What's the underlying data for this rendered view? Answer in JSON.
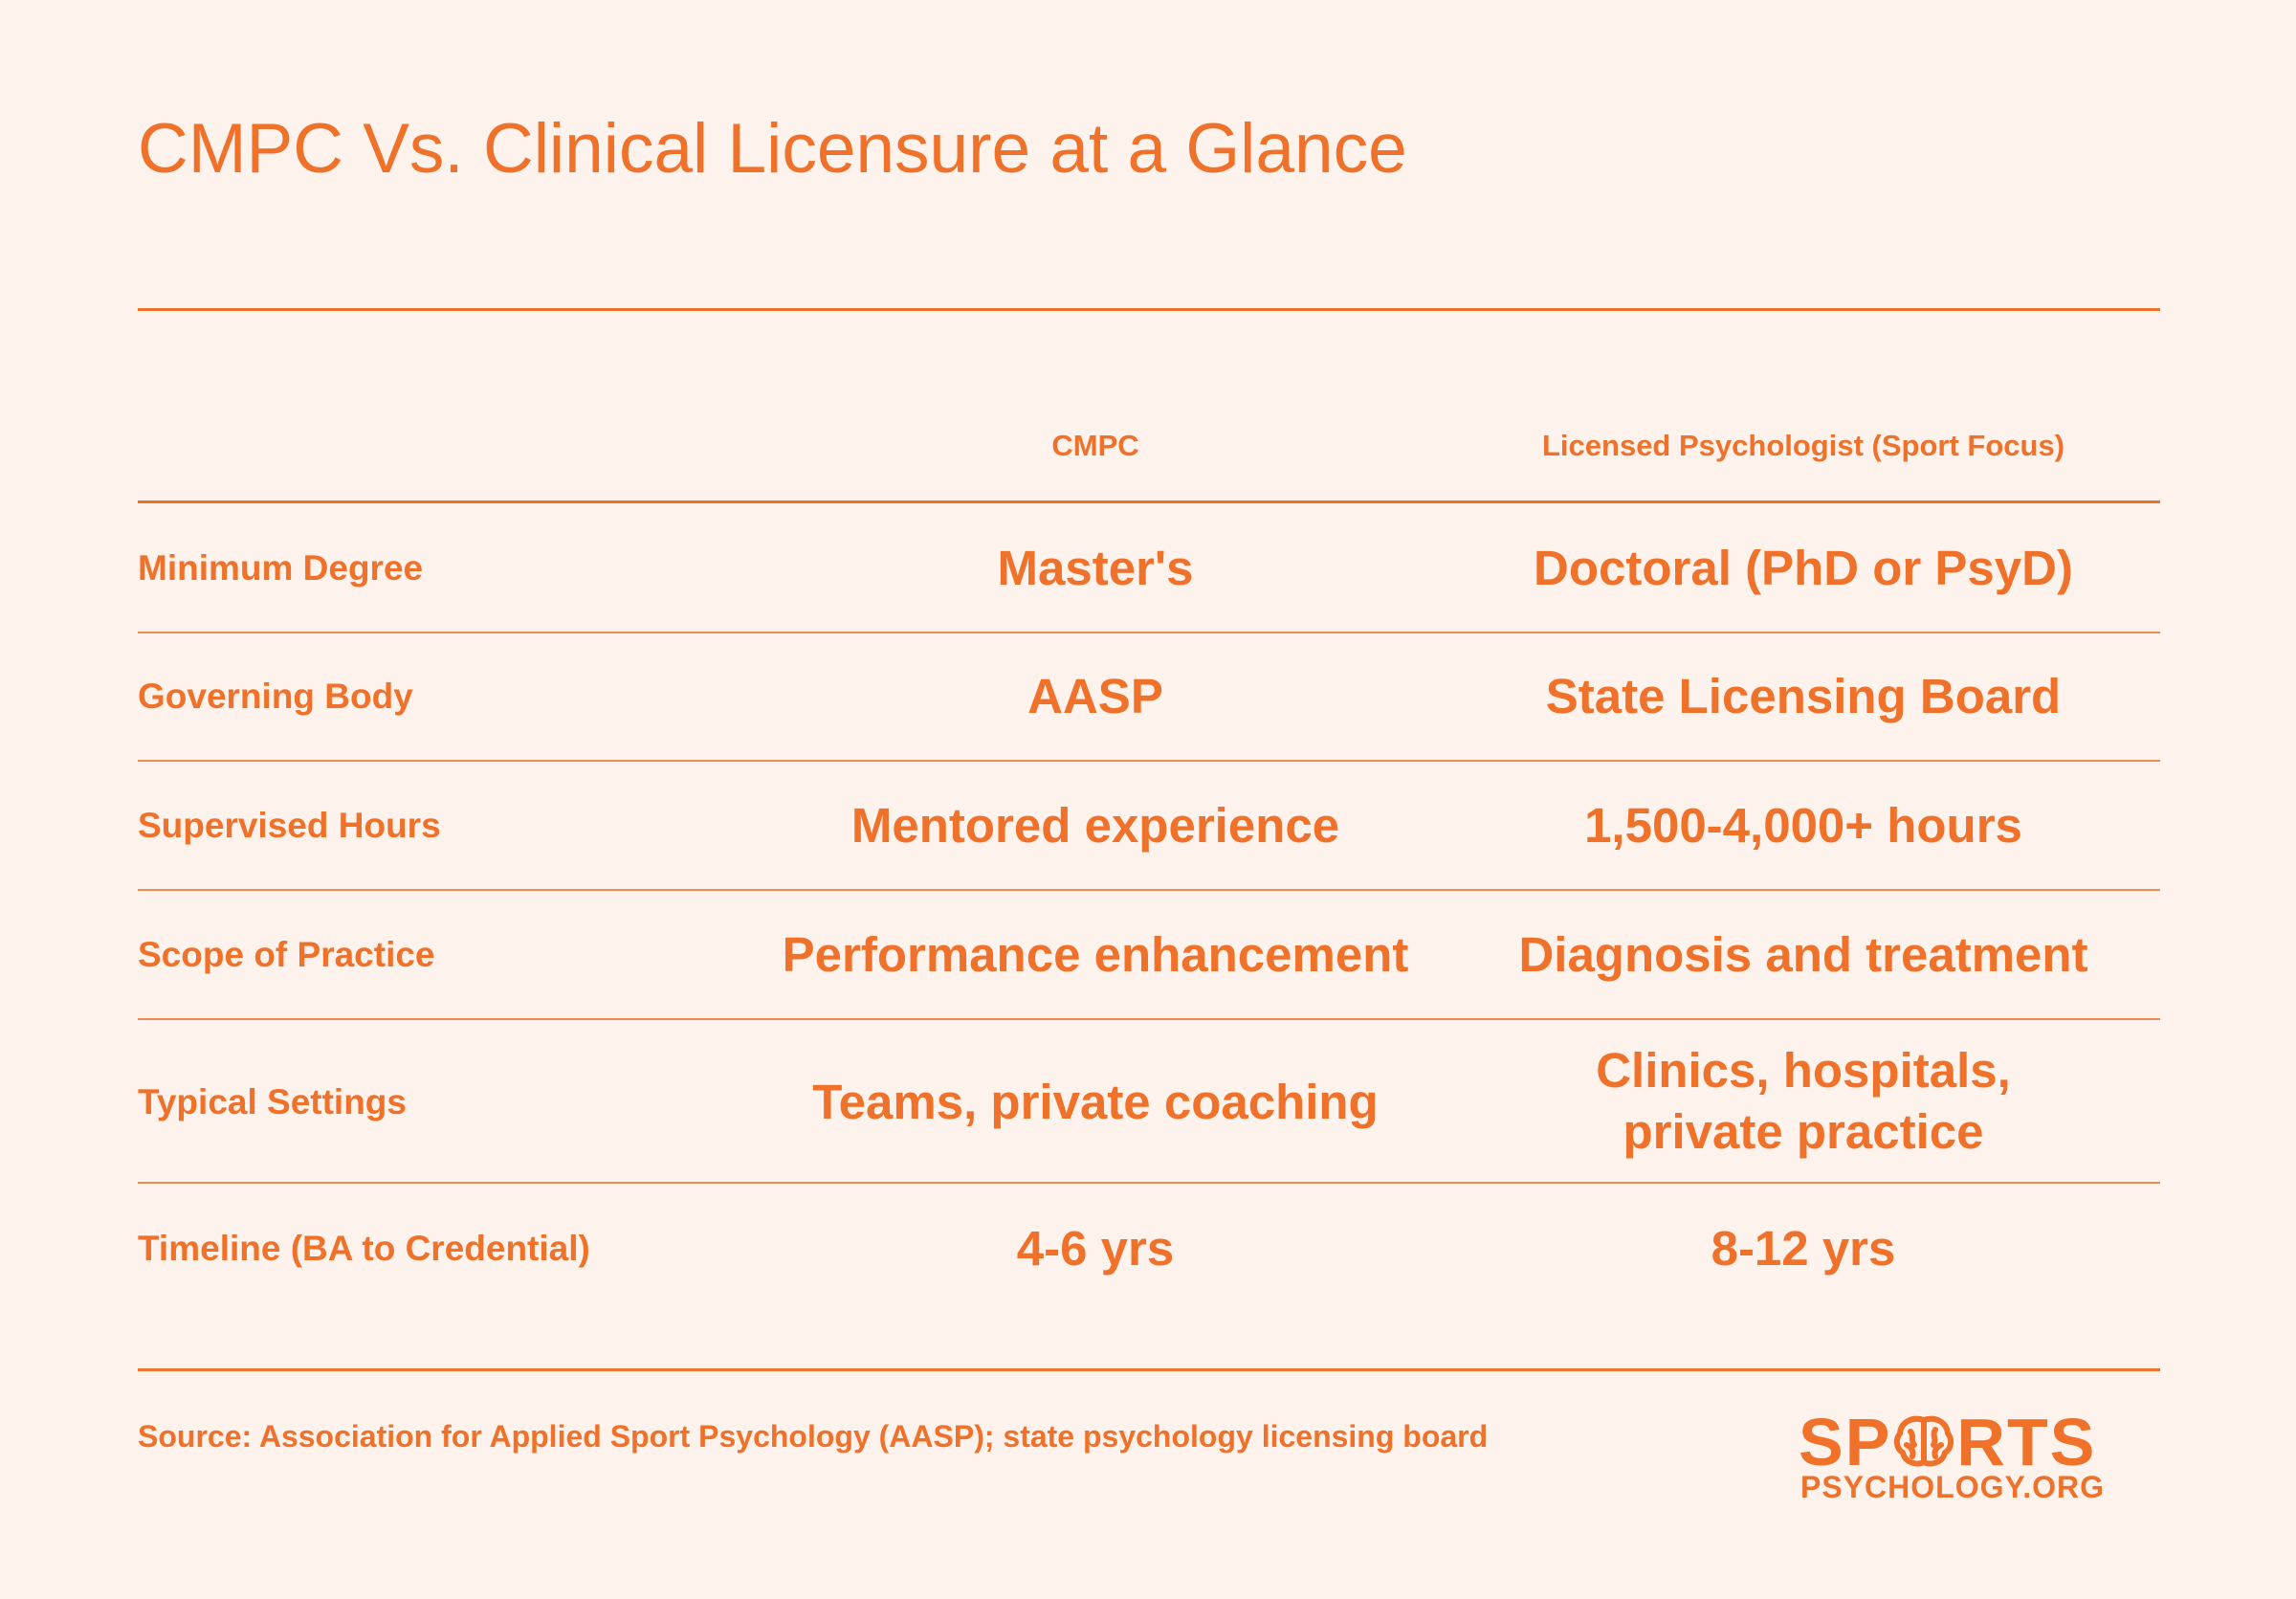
{
  "title": "CMPC Vs. Clinical Licensure at a Glance",
  "table": {
    "columns": [
      "CMPC",
      "Licensed Psychologist (Sport Focus)"
    ],
    "rows": [
      {
        "label": "Minimum Degree",
        "cmpc": "Master's",
        "licensed": "Doctoral (PhD or PsyD)"
      },
      {
        "label": "Governing Body",
        "cmpc": "AASP",
        "licensed": "State Licensing Board"
      },
      {
        "label": "Supervised Hours",
        "cmpc": "Mentored experience",
        "licensed": "1,500-4,000+ hours"
      },
      {
        "label": "Scope of Practice",
        "cmpc": "Performance enhancement",
        "licensed": "Diagnosis and treatment"
      },
      {
        "label": "Typical Settings",
        "cmpc": "Teams, private coaching",
        "licensed_lines": [
          "Clinics, hospitals,",
          "private practice"
        ]
      },
      {
        "label": "Timeline (BA to Credential)",
        "cmpc": "4-6 yrs",
        "licensed": "8-12 yrs"
      }
    ]
  },
  "source": "Source: Association for Applied Sport Psychology (AASP); state psychology licensing board",
  "logo": {
    "top_left": "SP",
    "top_right": "RTS",
    "bottom": "PSYCHOLOGY.ORG",
    "icon": "brain-icon",
    "color": "#f0712a"
  },
  "colors": {
    "background": "#fdf2ec",
    "accent": "#f0712a"
  }
}
